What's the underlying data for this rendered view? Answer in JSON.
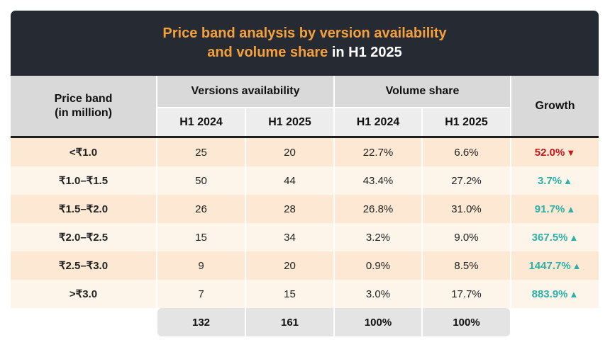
{
  "title": {
    "line1": "Price band analysis by version availability",
    "line2_orange": "and volume share",
    "line2_white": " in H1 2025"
  },
  "colors": {
    "header_bg": "#262b33",
    "accent_orange": "#f5a03a",
    "positive": "#2bb1a8",
    "negative": "#c4161c",
    "row_dark": "#fde9d3",
    "row_light": "#fef5ea"
  },
  "chart_data": {
    "type": "table",
    "title": "Price band analysis by version availability and volume share in H1 2025",
    "headers": {
      "price_band_line1": "Price band",
      "price_band_line2": "(in million)",
      "versions": "Versions availability",
      "volume": "Volume share",
      "growth": "Growth",
      "h1_2024": "H1 2024",
      "h1_2025": "H1 2025"
    },
    "rows": [
      {
        "band": "<₹1.0",
        "v2024": "25",
        "v2025": "20",
        "s2024": "22.7%",
        "s2025": "6.6%",
        "growth": "52.0%",
        "direction": "down"
      },
      {
        "band": "₹1.0–₹1.5",
        "v2024": "50",
        "v2025": "44",
        "s2024": "43.4%",
        "s2025": "27.2%",
        "growth": "3.7%",
        "direction": "up"
      },
      {
        "band": "₹1.5–₹2.0",
        "v2024": "26",
        "v2025": "28",
        "s2024": "26.8%",
        "s2025": "31.0%",
        "growth": "91.7%",
        "direction": "up"
      },
      {
        "band": "₹2.0–₹2.5",
        "v2024": "15",
        "v2025": "34",
        "s2024": "3.2%",
        "s2025": "9.0%",
        "growth": "367.5%",
        "direction": "up"
      },
      {
        "band": "₹2.5–₹3.0",
        "v2024": "9",
        "v2025": "20",
        "s2024": "0.9%",
        "s2025": "8.5%",
        "growth": "1447.7%",
        "direction": "up"
      },
      {
        "band": ">₹3.0",
        "v2024": "7",
        "v2025": "15",
        "s2024": "3.0%",
        "s2025": "17.7%",
        "growth": "883.9%",
        "direction": "up"
      }
    ],
    "totals": {
      "v2024": "132",
      "v2025": "161",
      "s2024": "100%",
      "s2025": "100%"
    },
    "arrows": {
      "up": "▲",
      "down": "▼"
    }
  }
}
